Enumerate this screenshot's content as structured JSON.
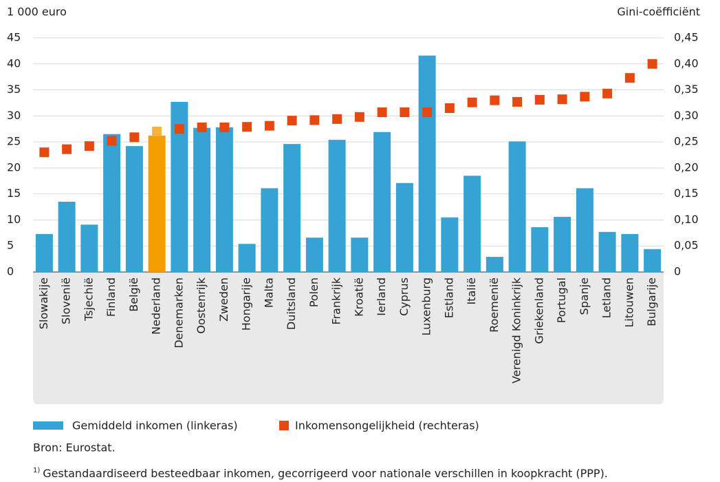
{
  "chart_data": {
    "type": "bar",
    "ylabel": "1 000 euro",
    "y2label": "Gini-coëfficiënt",
    "categories": [
      "Slowakije",
      "Slovenië",
      "Tsjechië",
      "Finland",
      "België",
      "Nederland",
      "Denemarken",
      "Oostenrijk",
      "Zweden",
      "Hongarije",
      "Malta",
      "Duitsland",
      "Polen",
      "Frankrijk",
      "Kroatië",
      "Ierland",
      "Cyprus",
      "Luxenburg",
      "Estland",
      "Italië",
      "Roemenië",
      "Verenigd Koninkrijk",
      "Griekenland",
      "Portugal",
      "Spanje",
      "Letland",
      "Litouwen",
      "Bulgarije"
    ],
    "series": [
      {
        "name": "Gemiddeld inkomen (linkeras)",
        "type": "bar",
        "color": "#35a3d4",
        "colors": [
          "#35a3d4",
          "#35a3d4",
          "#35a3d4",
          "#35a3d4",
          "#35a3d4",
          "#f29d00",
          "#35a3d4",
          "#35a3d4",
          "#35a3d4",
          "#35a3d4",
          "#35a3d4",
          "#35a3d4",
          "#35a3d4",
          "#35a3d4",
          "#35a3d4",
          "#35a3d4",
          "#35a3d4",
          "#35a3d4",
          "#35a3d4",
          "#35a3d4",
          "#35a3d4",
          "#35a3d4",
          "#35a3d4",
          "#35a3d4",
          "#35a3d4",
          "#35a3d4",
          "#35a3d4",
          "#35a3d4"
        ],
        "values": [
          7.3,
          13.5,
          9.1,
          26.5,
          24.2,
          26.2,
          32.7,
          27.7,
          27.8,
          5.4,
          16.1,
          24.6,
          6.6,
          25.4,
          6.6,
          26.9,
          17.1,
          41.6,
          10.5,
          18.5,
          2.9,
          25.1,
          8.6,
          10.6,
          16.1,
          7.7,
          7.3,
          4.4
        ]
      },
      {
        "name": "Inkomensongelijkheid (rechteras)",
        "type": "scatter",
        "axis": "y2",
        "color": "#e5490f",
        "colors": [
          "#e5490f",
          "#e5490f",
          "#e5490f",
          "#e5490f",
          "#e5490f",
          "#f5b23c",
          "#e5490f",
          "#e5490f",
          "#e5490f",
          "#e5490f",
          "#e5490f",
          "#e5490f",
          "#e5490f",
          "#e5490f",
          "#e5490f",
          "#e5490f",
          "#e5490f",
          "#e5490f",
          "#e5490f",
          "#e5490f",
          "#e5490f",
          "#e5490f",
          "#e5490f",
          "#e5490f",
          "#e5490f",
          "#e5490f",
          "#e5490f",
          "#e5490f"
        ],
        "values": [
          0.23,
          0.236,
          0.242,
          0.252,
          0.259,
          0.27,
          0.275,
          0.278,
          0.278,
          0.279,
          0.281,
          0.291,
          0.292,
          0.294,
          0.298,
          0.307,
          0.307,
          0.307,
          0.315,
          0.326,
          0.33,
          0.327,
          0.331,
          0.332,
          0.337,
          0.343,
          0.373,
          0.4
        ]
      }
    ],
    "ylim": [
      0,
      45
    ],
    "yticks": [
      0,
      5,
      10,
      15,
      20,
      25,
      30,
      35,
      40,
      45
    ],
    "y2lim": [
      0,
      0.45
    ],
    "y2ticks": [
      0,
      {
        "value": 0.05,
        "label": "0,05"
      },
      {
        "value": 0.1,
        "label": "0,10"
      },
      {
        "value": 0.15,
        "label": "0,15"
      },
      {
        "value": 0.2,
        "label": "0,20"
      },
      {
        "value": 0.25,
        "label": "0,25"
      },
      {
        "value": 0.3,
        "label": "0,30"
      },
      {
        "value": 0.35,
        "label": "0,35"
      },
      {
        "value": 0.4,
        "label": "0,40"
      },
      {
        "value": 0.45,
        "label": "0,45"
      }
    ],
    "grid": true,
    "source": "Bron: Eurostat.",
    "footnote_marker": "1)",
    "footnote": "Gestandaardiseerd besteedbaar inkomen, gecorrigeerd voor nationale verschillen in koopkracht (PPP)."
  }
}
